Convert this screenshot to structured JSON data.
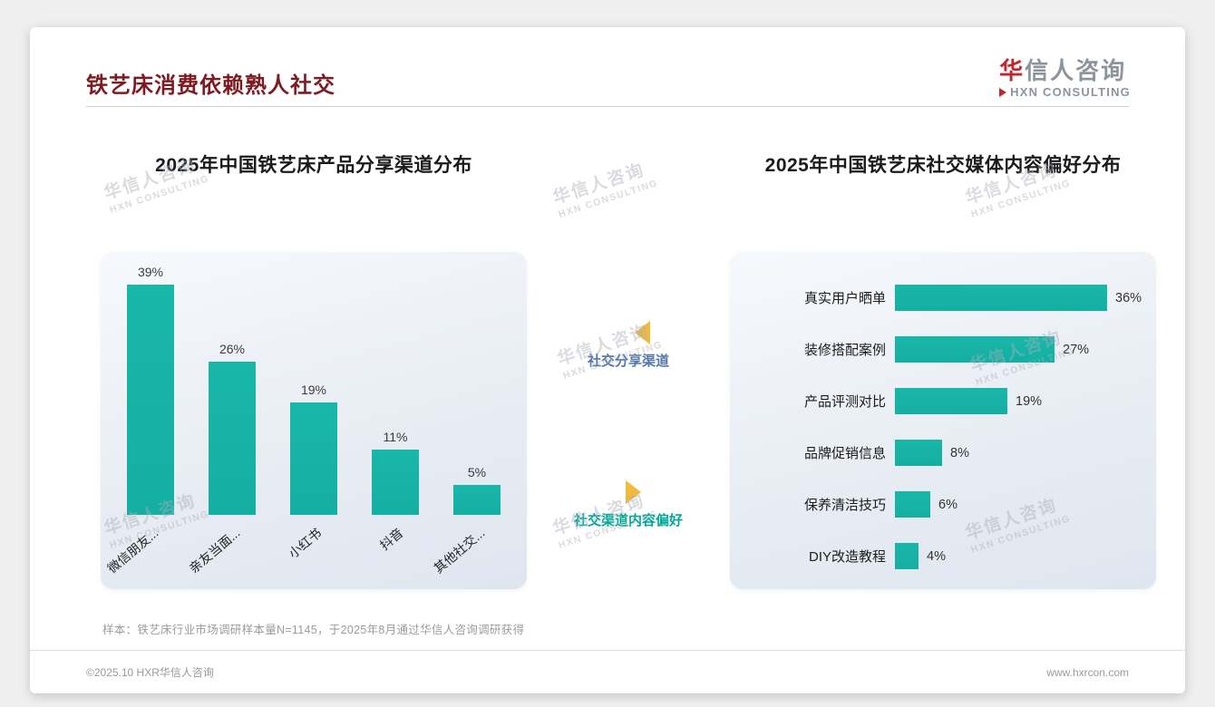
{
  "header": {
    "title": "铁艺床消费依赖熟人社交",
    "logo_cn_first": "华",
    "logo_cn_rest": "信人咨询",
    "logo_en": "HXN CONSULTING"
  },
  "middle": {
    "top_label": "社交分享渠道",
    "bottom_label": "社交渠道内容偏好"
  },
  "chart_data": [
    {
      "type": "bar",
      "title": "2025年中国铁艺床产品分享渠道分布",
      "categories": [
        "微信朋友...",
        "亲友当面...",
        "小红书",
        "抖音",
        "其他社交..."
      ],
      "values": [
        39,
        26,
        19,
        11,
        5
      ],
      "unit": "%",
      "ylim": [
        0,
        45
      ],
      "grid": false,
      "bar_color": "#14AFA2"
    },
    {
      "type": "bar",
      "orientation": "horizontal",
      "title": "2025年中国铁艺床社交媒体内容偏好分布",
      "categories": [
        "真实用户晒单",
        "装修搭配案例",
        "产品评测对比",
        "品牌促销信息",
        "保养清洁技巧",
        "DIY改造教程"
      ],
      "values": [
        36,
        27,
        19,
        8,
        6,
        4
      ],
      "unit": "%",
      "xlim": [
        0,
        40
      ],
      "grid": false,
      "bar_color": "#14AFA2"
    }
  ],
  "watermark": {
    "line1": "华信人咨询",
    "line2": "HXN CONSULTING"
  },
  "footer": {
    "sample_note": "样本：铁艺床行业市场调研样本量N=1145，于2025年8月通过华信人咨询调研获得",
    "copyright": "©2025.10 HXR华信人咨询",
    "website": "www.hxrcon.com"
  },
  "colors": {
    "teal": "#14AFA2",
    "gold": "#F2B93B",
    "maroon": "#7E1B22",
    "label-blue": "#5577A6",
    "label-teal": "#00A896"
  }
}
